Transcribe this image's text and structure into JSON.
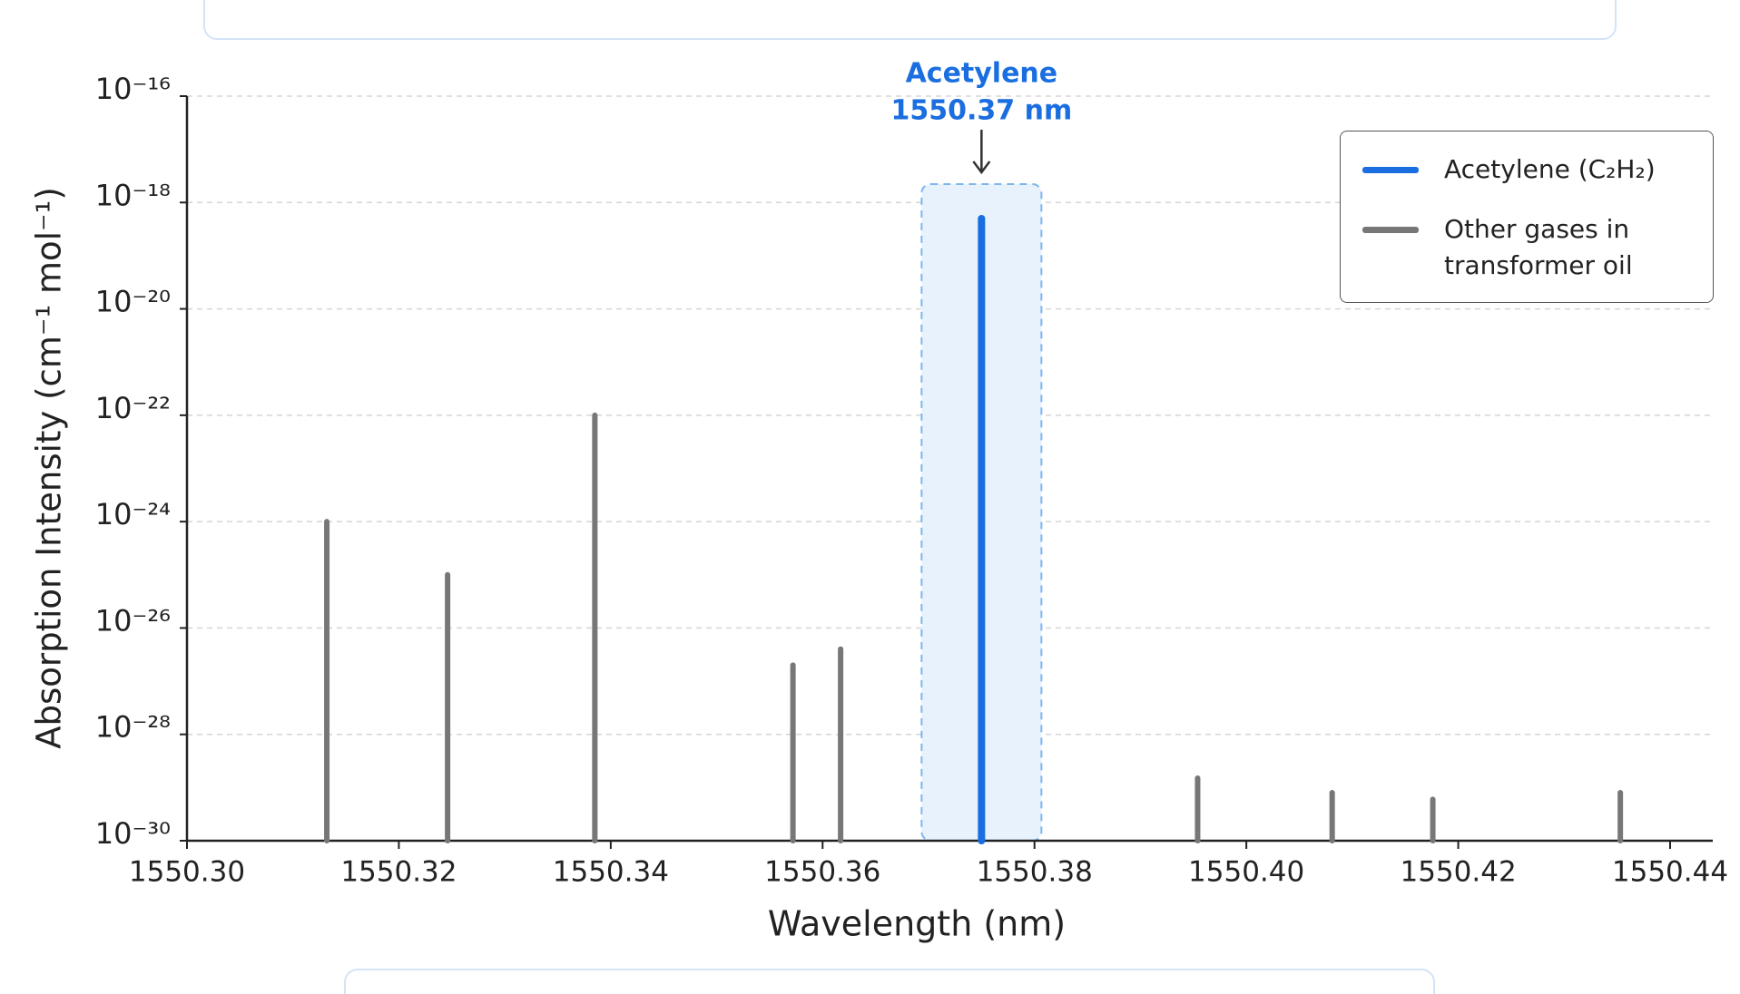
{
  "chart_data": {
    "type": "stem",
    "xlabel": "Wavelength (nm)",
    "ylabel": "Absorption Intensity (cm⁻¹ mol⁻¹)",
    "log_y": true,
    "grid": true,
    "xlim": [
      1550.3,
      1550.44
    ],
    "xticks": [
      {
        "value": 1550.3,
        "label": "1550.30"
      },
      1550.32,
      1550.34,
      1550.36,
      1550.38,
      {
        "value": 1550.4,
        "label": "1550.40"
      },
      1550.42,
      1550.44
    ],
    "ylim": [
      1e-30,
      1e-16
    ],
    "yticks": [
      {
        "value": 1e-30,
        "label": "10⁻³⁰"
      },
      {
        "value": 1e-28,
        "label": "10⁻²⁸"
      },
      {
        "value": 1e-26,
        "label": "10⁻²⁶"
      },
      {
        "value": 1e-24,
        "label": "10⁻²⁴"
      },
      {
        "value": 1e-22,
        "label": "10⁻²²"
      },
      {
        "value": 1e-20,
        "label": "10⁻²⁰"
      },
      {
        "value": 1e-18,
        "label": "10⁻¹⁸"
      },
      {
        "value": 1e-16,
        "label": "10⁻¹⁶"
      }
    ],
    "legend_position": "upper right",
    "annotation": [
      "Acetylene",
      "1550.37 nm"
    ],
    "series": [
      {
        "name": "Acetylene (C₂H₂)",
        "color": "#1a6ee0",
        "x": [
          1550.375
        ],
        "values": [
          5e-19
        ]
      },
      {
        "name": "Other gases in transformer oil",
        "color": "#777777",
        "x": [
          1550.3132,
          1550.3246,
          1550.3385,
          1550.3572,
          1550.3617,
          1550.3954,
          1550.4081,
          1550.4176,
          1550.4353
        ],
        "values": [
          1e-24,
          1e-25,
          1e-22,
          2e-27,
          4e-27,
          1.5e-29,
          8e-30,
          6e-30,
          8e-30
        ]
      }
    ]
  }
}
